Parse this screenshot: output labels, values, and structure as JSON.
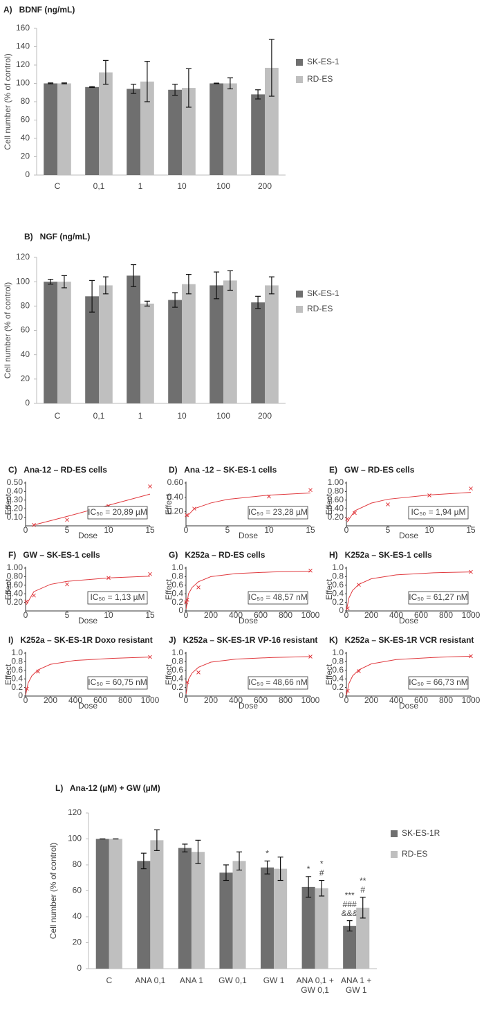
{
  "chart_data": [
    {
      "type": "bar",
      "title": "A)   BDNF (ng/mL)",
      "y_label": "Cell number (% of control)",
      "categories": [
        "C",
        "0,1",
        "1",
        "10",
        "100",
        "200"
      ],
      "series": [
        {
          "name": "SK-ES-1",
          "color": "#6f6f6f",
          "values": [
            100,
            96,
            94,
            93,
            100,
            88
          ],
          "errors": [
            0.5,
            0.5,
            5,
            6,
            0.3,
            5
          ]
        },
        {
          "name": "RD-ES",
          "color": "#bfbfbf",
          "values": [
            100,
            112,
            102,
            95,
            100,
            117
          ],
          "errors": [
            0.5,
            13,
            22,
            21,
            6,
            31
          ]
        }
      ],
      "ylim": [
        0,
        160
      ],
      "yticks": [
        0,
        20,
        40,
        60,
        80,
        100,
        120,
        140,
        160
      ]
    },
    {
      "type": "bar",
      "title": "B)   NGF (ng/mL)",
      "y_label": "Cell number (% of control)",
      "categories": [
        "C",
        "0,1",
        "1",
        "10",
        "100",
        "200"
      ],
      "series": [
        {
          "name": "SK-ES-1",
          "color": "#6f6f6f",
          "values": [
            100,
            88,
            105,
            85,
            97,
            83
          ],
          "errors": [
            2,
            13,
            9,
            6,
            11,
            5
          ]
        },
        {
          "name": "RD-ES",
          "color": "#bfbfbf",
          "values": [
            100,
            97,
            82,
            98,
            101,
            97
          ],
          "errors": [
            5,
            7,
            2,
            8,
            8,
            7
          ]
        }
      ],
      "ylim": [
        0,
        120
      ],
      "yticks": [
        0,
        20,
        40,
        60,
        80,
        100,
        120
      ]
    },
    {
      "type": "scatter",
      "title": "C)   Ana-12 – RD-ES cells",
      "x_label": "Dose",
      "y_label": "Effect",
      "annotation": "IC₅₀ = 20,89 µM",
      "series": [
        {
          "color": "#e0393e",
          "style": "x",
          "x": [
            1,
            5,
            10,
            15
          ],
          "values": [
            0.01,
            0.07,
            0.23,
            0.46
          ]
        },
        {
          "color": "#e0393e",
          "style": "line",
          "x": [
            1,
            5,
            10,
            15
          ],
          "values": [
            0.01,
            0.11,
            0.24,
            0.37
          ]
        }
      ],
      "xlim": [
        0,
        15
      ],
      "xticks": [
        0,
        5,
        10,
        15
      ],
      "ylim": [
        0,
        0.5
      ],
      "yticks": [
        {
          "value": 0.1,
          "label": "0.10"
        },
        {
          "value": 0.2,
          "label": "0.20"
        },
        {
          "value": 0.3,
          "label": "0.30"
        },
        {
          "value": 0.4,
          "label": "0.40"
        },
        {
          "value": 0.5,
          "label": "0.50"
        }
      ]
    },
    {
      "type": "scatter",
      "title": "D)   Ana -12 – SK-ES-1 cells",
      "x_label": "Dose",
      "y_label": "Effect",
      "annotation": "IC₅₀ = 23,28 µM",
      "series": [
        {
          "color": "#e0393e",
          "style": "x",
          "x": [
            0.1,
            1,
            10,
            15
          ],
          "values": [
            0.15,
            0.24,
            0.41,
            0.5
          ]
        },
        {
          "color": "#e0393e",
          "style": "line",
          "x": [
            0.1,
            1,
            3,
            5,
            10,
            15
          ],
          "values": [
            0.13,
            0.24,
            0.32,
            0.37,
            0.43,
            0.46
          ]
        }
      ],
      "xlim": [
        0,
        15
      ],
      "xticks": [
        0,
        5,
        10,
        15
      ],
      "ylim": [
        0,
        0.6
      ],
      "yticks": [
        {
          "value": 0.2,
          "label": "0.20"
        },
        {
          "value": 0.4,
          "label": "0.40"
        },
        {
          "value": 0.6,
          "label": "0.60"
        }
      ]
    },
    {
      "type": "scatter",
      "title": "E)   GW – RD-ES cells",
      "x_label": "Dose",
      "y_label": "Effect",
      "annotation": "IC₅₀ = 1,94 µM",
      "series": [
        {
          "color": "#e0393e",
          "style": "x",
          "x": [
            0.1,
            1,
            5,
            10,
            15
          ],
          "values": [
            0.16,
            0.3,
            0.5,
            0.71,
            0.87
          ]
        },
        {
          "color": "#e0393e",
          "style": "line",
          "x": [
            0.1,
            1,
            3,
            5,
            10,
            15
          ],
          "values": [
            0.09,
            0.35,
            0.53,
            0.62,
            0.72,
            0.78
          ]
        }
      ],
      "xlim": [
        0,
        15
      ],
      "xticks": [
        0,
        5,
        10,
        15
      ],
      "ylim": [
        0,
        1
      ],
      "yticks": [
        {
          "value": 0.2,
          "label": "0.20"
        },
        {
          "value": 0.4,
          "label": "0.40"
        },
        {
          "value": 0.6,
          "label": "0.60"
        },
        {
          "value": 0.8,
          "label": "0.80"
        },
        {
          "value": 1,
          "label": "1.00"
        }
      ]
    },
    {
      "type": "scatter",
      "title": "F)   GW – SK-ES-1 cells",
      "x_label": "Dose",
      "y_label": "Effect",
      "annotation": "IC₅₀ = 1,13 µM",
      "series": [
        {
          "color": "#e0393e",
          "style": "x",
          "x": [
            0.1,
            1,
            5,
            10,
            15
          ],
          "values": [
            0.22,
            0.36,
            0.62,
            0.77,
            0.86
          ]
        },
        {
          "color": "#e0393e",
          "style": "line",
          "x": [
            0.1,
            1,
            3,
            5,
            10,
            15
          ],
          "values": [
            0.15,
            0.45,
            0.62,
            0.69,
            0.77,
            0.81
          ]
        }
      ],
      "xlim": [
        0,
        15
      ],
      "xticks": [
        0,
        5,
        10,
        15
      ],
      "ylim": [
        0,
        1
      ],
      "yticks": [
        {
          "value": 0.2,
          "label": "0.20"
        },
        {
          "value": 0.4,
          "label": "0.40"
        },
        {
          "value": 0.6,
          "label": "0.60"
        },
        {
          "value": 0.8,
          "label": "0.80"
        },
        {
          "value": 1,
          "label": "1.00"
        }
      ]
    },
    {
      "type": "scatter",
      "title": "G)   K252a – RD-ES cells",
      "x_label": "Dose",
      "y_label": "Effect",
      "annotation": "IC₅₀ = 48,57 nM",
      "series": [
        {
          "color": "#e0393e",
          "style": "x",
          "x": [
            1,
            10,
            100,
            1000
          ],
          "values": [
            0.2,
            0.26,
            0.55,
            0.94
          ]
        },
        {
          "color": "#e0393e",
          "style": "line",
          "x": [
            1,
            20,
            50,
            100,
            200,
            400,
            700,
            1000
          ],
          "values": [
            0.05,
            0.4,
            0.55,
            0.68,
            0.8,
            0.87,
            0.91,
            0.93
          ]
        }
      ],
      "xlim": [
        0,
        1000
      ],
      "xticks": [
        0,
        200,
        400,
        600,
        800,
        1000
      ],
      "ylim": [
        0,
        1
      ],
      "yticks": [
        0,
        0.2,
        0.4,
        0.6,
        0.8,
        {
          "value": 1,
          "label": "1.0"
        }
      ]
    },
    {
      "type": "scatter",
      "title": "H)   K252a – SK-ES-1 cells",
      "x_label": "Dose",
      "y_label": "Effect",
      "annotation": "IC₅₀ = 61,27 nM",
      "series": [
        {
          "color": "#e0393e",
          "style": "x",
          "x": [
            10,
            100,
            1000
          ],
          "values": [
            0.06,
            0.61,
            0.91
          ]
        },
        {
          "color": "#e0393e",
          "style": "line",
          "x": [
            1,
            20,
            50,
            100,
            200,
            400,
            700,
            1000
          ],
          "values": [
            0.02,
            0.3,
            0.48,
            0.62,
            0.75,
            0.84,
            0.89,
            0.91
          ]
        }
      ],
      "xlim": [
        0,
        1000
      ],
      "xticks": [
        0,
        200,
        400,
        600,
        800,
        1000
      ],
      "ylim": [
        0,
        1
      ],
      "yticks": [
        0,
        0.2,
        0.4,
        0.6,
        0.8,
        {
          "value": 1,
          "label": "1.0"
        }
      ]
    },
    {
      "type": "scatter",
      "title": "I)   K252a – SK-ES-1R Doxo resistant",
      "x_label": "Dose",
      "y_label": "Effect",
      "annotation": "IC₅₀ = 60,75 nM",
      "series": [
        {
          "color": "#e0393e",
          "style": "x",
          "x": [
            10,
            100,
            1000
          ],
          "values": [
            0.17,
            0.57,
            0.91
          ]
        },
        {
          "color": "#e0393e",
          "style": "line",
          "x": [
            1,
            20,
            50,
            100,
            200,
            400,
            700,
            1000
          ],
          "values": [
            0.03,
            0.3,
            0.47,
            0.61,
            0.74,
            0.83,
            0.88,
            0.91
          ]
        }
      ],
      "xlim": [
        0,
        1000
      ],
      "xticks": [
        0,
        200,
        400,
        600,
        800,
        1000
      ],
      "ylim": [
        0,
        1
      ],
      "yticks": [
        0,
        0.2,
        0.4,
        0.6,
        0.8,
        {
          "value": 1,
          "label": "1.0"
        }
      ]
    },
    {
      "type": "scatter",
      "title": "J)   K252a – SK-ES-1R VP-16 resistant",
      "x_label": "Dose",
      "y_label": "Effect",
      "annotation": "IC₅₀ = 48,66 nM",
      "series": [
        {
          "color": "#e0393e",
          "style": "x",
          "x": [
            10,
            100,
            1000
          ],
          "values": [
            0.32,
            0.55,
            0.92
          ]
        },
        {
          "color": "#e0393e",
          "style": "line",
          "x": [
            1,
            20,
            50,
            100,
            200,
            400,
            700,
            1000
          ],
          "values": [
            0.05,
            0.39,
            0.54,
            0.67,
            0.79,
            0.86,
            0.9,
            0.92
          ]
        }
      ],
      "xlim": [
        0,
        1000
      ],
      "xticks": [
        0,
        200,
        400,
        600,
        800,
        1000
      ],
      "ylim": [
        0,
        1
      ],
      "yticks": [
        0,
        0.2,
        0.4,
        0.6,
        0.8,
        {
          "value": 1,
          "label": "1.0"
        }
      ]
    },
    {
      "type": "scatter",
      "title": "K)   K252a – SK-ES-1R VCR resistant",
      "x_label": "Dose",
      "y_label": "Effect",
      "annotation": "IC₅₀ = 66,73 nM",
      "series": [
        {
          "color": "#e0393e",
          "style": "x",
          "x": [
            10,
            100,
            1000
          ],
          "values": [
            0.12,
            0.58,
            0.93
          ]
        },
        {
          "color": "#e0393e",
          "style": "line",
          "x": [
            1,
            20,
            50,
            100,
            200,
            400,
            700,
            1000
          ],
          "values": [
            0.02,
            0.29,
            0.47,
            0.61,
            0.75,
            0.85,
            0.9,
            0.93
          ]
        }
      ],
      "xlim": [
        0,
        1000
      ],
      "xticks": [
        0,
        200,
        400,
        600,
        800,
        1000
      ],
      "ylim": [
        0,
        1
      ],
      "yticks": [
        0,
        0.2,
        0.4,
        0.6,
        0.8,
        {
          "value": 1,
          "label": "1.0"
        }
      ]
    },
    {
      "type": "bar",
      "title": "L)   Ana-12 (µM) + GW (µM)",
      "y_label": "Cell number (% of control)",
      "categories": [
        "C",
        "ANA 0,1",
        "ANA 1",
        "GW 0,1",
        "GW 1",
        "ANA 0,1 + GW 0,1",
        "ANA 1 + GW 1"
      ],
      "series": [
        {
          "name": "SK-ES-1R",
          "color": "#6f6f6f",
          "values": [
            100,
            83,
            93,
            74,
            78,
            63,
            33
          ],
          "errors": [
            0,
            6,
            3,
            6,
            5,
            8,
            4
          ],
          "annotations": [
            [],
            [],
            [],
            [],
            [
              "*"
            ],
            [
              "*"
            ],
            [
              "***",
              "###",
              "&&&"
            ]
          ]
        },
        {
          "name": "RD-ES",
          "color": "#bfbfbf",
          "values": [
            100,
            99,
            90,
            83,
            77,
            62,
            47
          ],
          "errors": [
            0,
            8,
            9,
            7,
            9,
            6,
            8
          ],
          "annotations": [
            [],
            [],
            [],
            [],
            [],
            [
              "*",
              "#"
            ],
            [
              "**",
              "#"
            ]
          ]
        }
      ],
      "ylim": [
        0,
        120
      ],
      "yticks": [
        0,
        20,
        40,
        60,
        80,
        100,
        120
      ]
    }
  ]
}
